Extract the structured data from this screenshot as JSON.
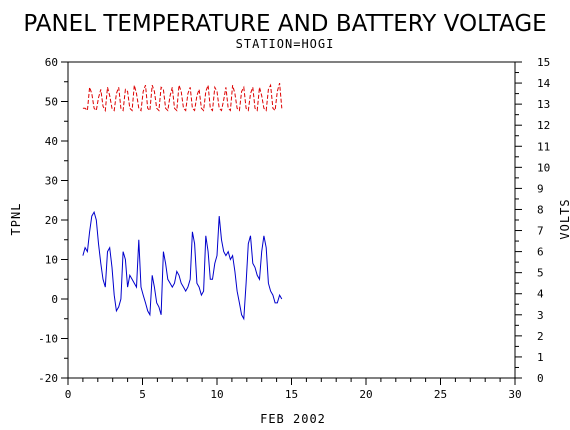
{
  "chart_data": {
    "type": "line",
    "title": "PANEL TEMPERATURE AND BATTERY VOLTAGE",
    "subtitle": "STATION=HOGI",
    "xlabel": "FEB 2002",
    "ylabel_left": "TPNL",
    "ylabel_right": "VOLTS",
    "xlim": [
      0,
      30
    ],
    "ylim_left": [
      -20,
      60
    ],
    "ylim_right": [
      0,
      15
    ],
    "x_ticks": [
      0,
      5,
      10,
      15,
      20,
      25,
      30
    ],
    "y_left_ticks": [
      -20,
      -10,
      0,
      10,
      20,
      30,
      40,
      50,
      60
    ],
    "y_right_ticks": [
      0,
      1,
      2,
      3,
      4,
      5,
      6,
      7,
      8,
      9,
      10,
      11,
      12,
      13,
      14,
      15
    ],
    "grid": false,
    "series": [
      {
        "axis": "left",
        "color": "#0000cc",
        "style": "solid",
        "x": [
          1.0,
          1.15,
          1.3,
          1.45,
          1.6,
          1.75,
          1.9,
          2.05,
          2.2,
          2.35,
          2.5,
          2.65,
          2.8,
          2.95,
          3.1,
          3.25,
          3.4,
          3.55,
          3.7,
          3.85,
          4.0,
          4.15,
          4.3,
          4.45,
          4.6,
          4.75,
          4.9,
          5.05,
          5.2,
          5.35,
          5.5,
          5.65,
          5.8,
          5.95,
          6.1,
          6.25,
          6.4,
          6.55,
          6.7,
          6.85,
          7.0,
          7.15,
          7.3,
          7.45,
          7.6,
          7.75,
          7.9,
          8.05,
          8.2,
          8.35,
          8.5,
          8.65,
          8.8,
          8.95,
          9.1,
          9.25,
          9.4,
          9.55,
          9.7,
          9.85,
          10.0,
          10.15,
          10.3,
          10.45,
          10.6,
          10.75,
          10.9,
          11.05,
          11.2,
          11.35,
          11.5,
          11.65,
          11.8,
          11.95,
          12.1,
          12.25,
          12.4,
          12.55,
          12.7,
          12.85,
          13.0,
          13.15,
          13.3,
          13.45,
          13.6,
          13.75,
          13.9,
          14.05,
          14.2,
          14.35
        ],
        "y": [
          11,
          13,
          12,
          17,
          21,
          22,
          20,
          14,
          9,
          5,
          3,
          12,
          13,
          8,
          1,
          -3,
          -2,
          0,
          12,
          10,
          3,
          6,
          5,
          4,
          3,
          15,
          3,
          1,
          -1,
          -3,
          -4,
          6,
          3,
          -1,
          -2,
          -4,
          12,
          9,
          5,
          4,
          3,
          4,
          7,
          6,
          4,
          3,
          2,
          3,
          5,
          17,
          14,
          4,
          3,
          1,
          2,
          16,
          12,
          5,
          5,
          9,
          11,
          21,
          15,
          12,
          11,
          12,
          10,
          11,
          7,
          2,
          -1,
          -4,
          -5,
          4,
          14,
          16,
          9,
          8,
          6,
          5,
          12,
          16,
          13,
          4,
          2,
          1,
          -1,
          -1,
          1,
          0
        ]
      },
      {
        "axis": "right",
        "color": "#dd0000",
        "style": "dashed",
        "x": [
          1.0,
          1.15,
          1.3,
          1.45,
          1.6,
          1.75,
          1.9,
          2.05,
          2.2,
          2.35,
          2.5,
          2.65,
          2.8,
          2.95,
          3.1,
          3.25,
          3.4,
          3.55,
          3.7,
          3.85,
          4.0,
          4.15,
          4.3,
          4.45,
          4.6,
          4.75,
          4.9,
          5.05,
          5.2,
          5.35,
          5.5,
          5.65,
          5.8,
          5.95,
          6.1,
          6.25,
          6.4,
          6.55,
          6.7,
          6.85,
          7.0,
          7.15,
          7.3,
          7.45,
          7.6,
          7.75,
          7.9,
          8.05,
          8.2,
          8.35,
          8.5,
          8.65,
          8.8,
          8.95,
          9.1,
          9.25,
          9.4,
          9.55,
          9.7,
          9.85,
          10.0,
          10.15,
          10.3,
          10.45,
          10.6,
          10.75,
          10.9,
          11.05,
          11.2,
          11.35,
          11.5,
          11.65,
          11.8,
          11.95,
          12.1,
          12.25,
          12.4,
          12.55,
          12.7,
          12.85,
          13.0,
          13.15,
          13.3,
          13.45,
          13.6,
          13.75,
          13.9,
          14.05,
          14.2,
          14.35
        ],
        "y": [
          12.8,
          12.8,
          12.7,
          13.8,
          13.5,
          12.8,
          12.7,
          13.3,
          13.7,
          12.9,
          12.7,
          13.8,
          13.4,
          12.8,
          12.7,
          13.5,
          13.8,
          12.8,
          12.7,
          13.7,
          13.6,
          12.8,
          12.7,
          13.9,
          13.5,
          12.8,
          12.7,
          13.6,
          13.9,
          12.8,
          12.7,
          13.9,
          13.6,
          12.8,
          12.7,
          13.8,
          13.7,
          12.8,
          12.7,
          13.4,
          13.8,
          12.8,
          12.7,
          13.9,
          13.6,
          12.8,
          12.7,
          13.5,
          13.8,
          12.8,
          12.7,
          13.4,
          13.7,
          12.8,
          12.7,
          13.6,
          13.9,
          12.8,
          12.7,
          13.8,
          13.6,
          12.8,
          12.7,
          13.2,
          13.8,
          12.8,
          12.7,
          13.9,
          13.5,
          12.8,
          12.7,
          13.6,
          13.8,
          12.8,
          12.7,
          13.5,
          13.8,
          12.8,
          12.7,
          13.8,
          13.4,
          12.8,
          12.7,
          13.7,
          13.9,
          12.8,
          12.7,
          13.6,
          14.0,
          12.8
        ]
      }
    ]
  }
}
